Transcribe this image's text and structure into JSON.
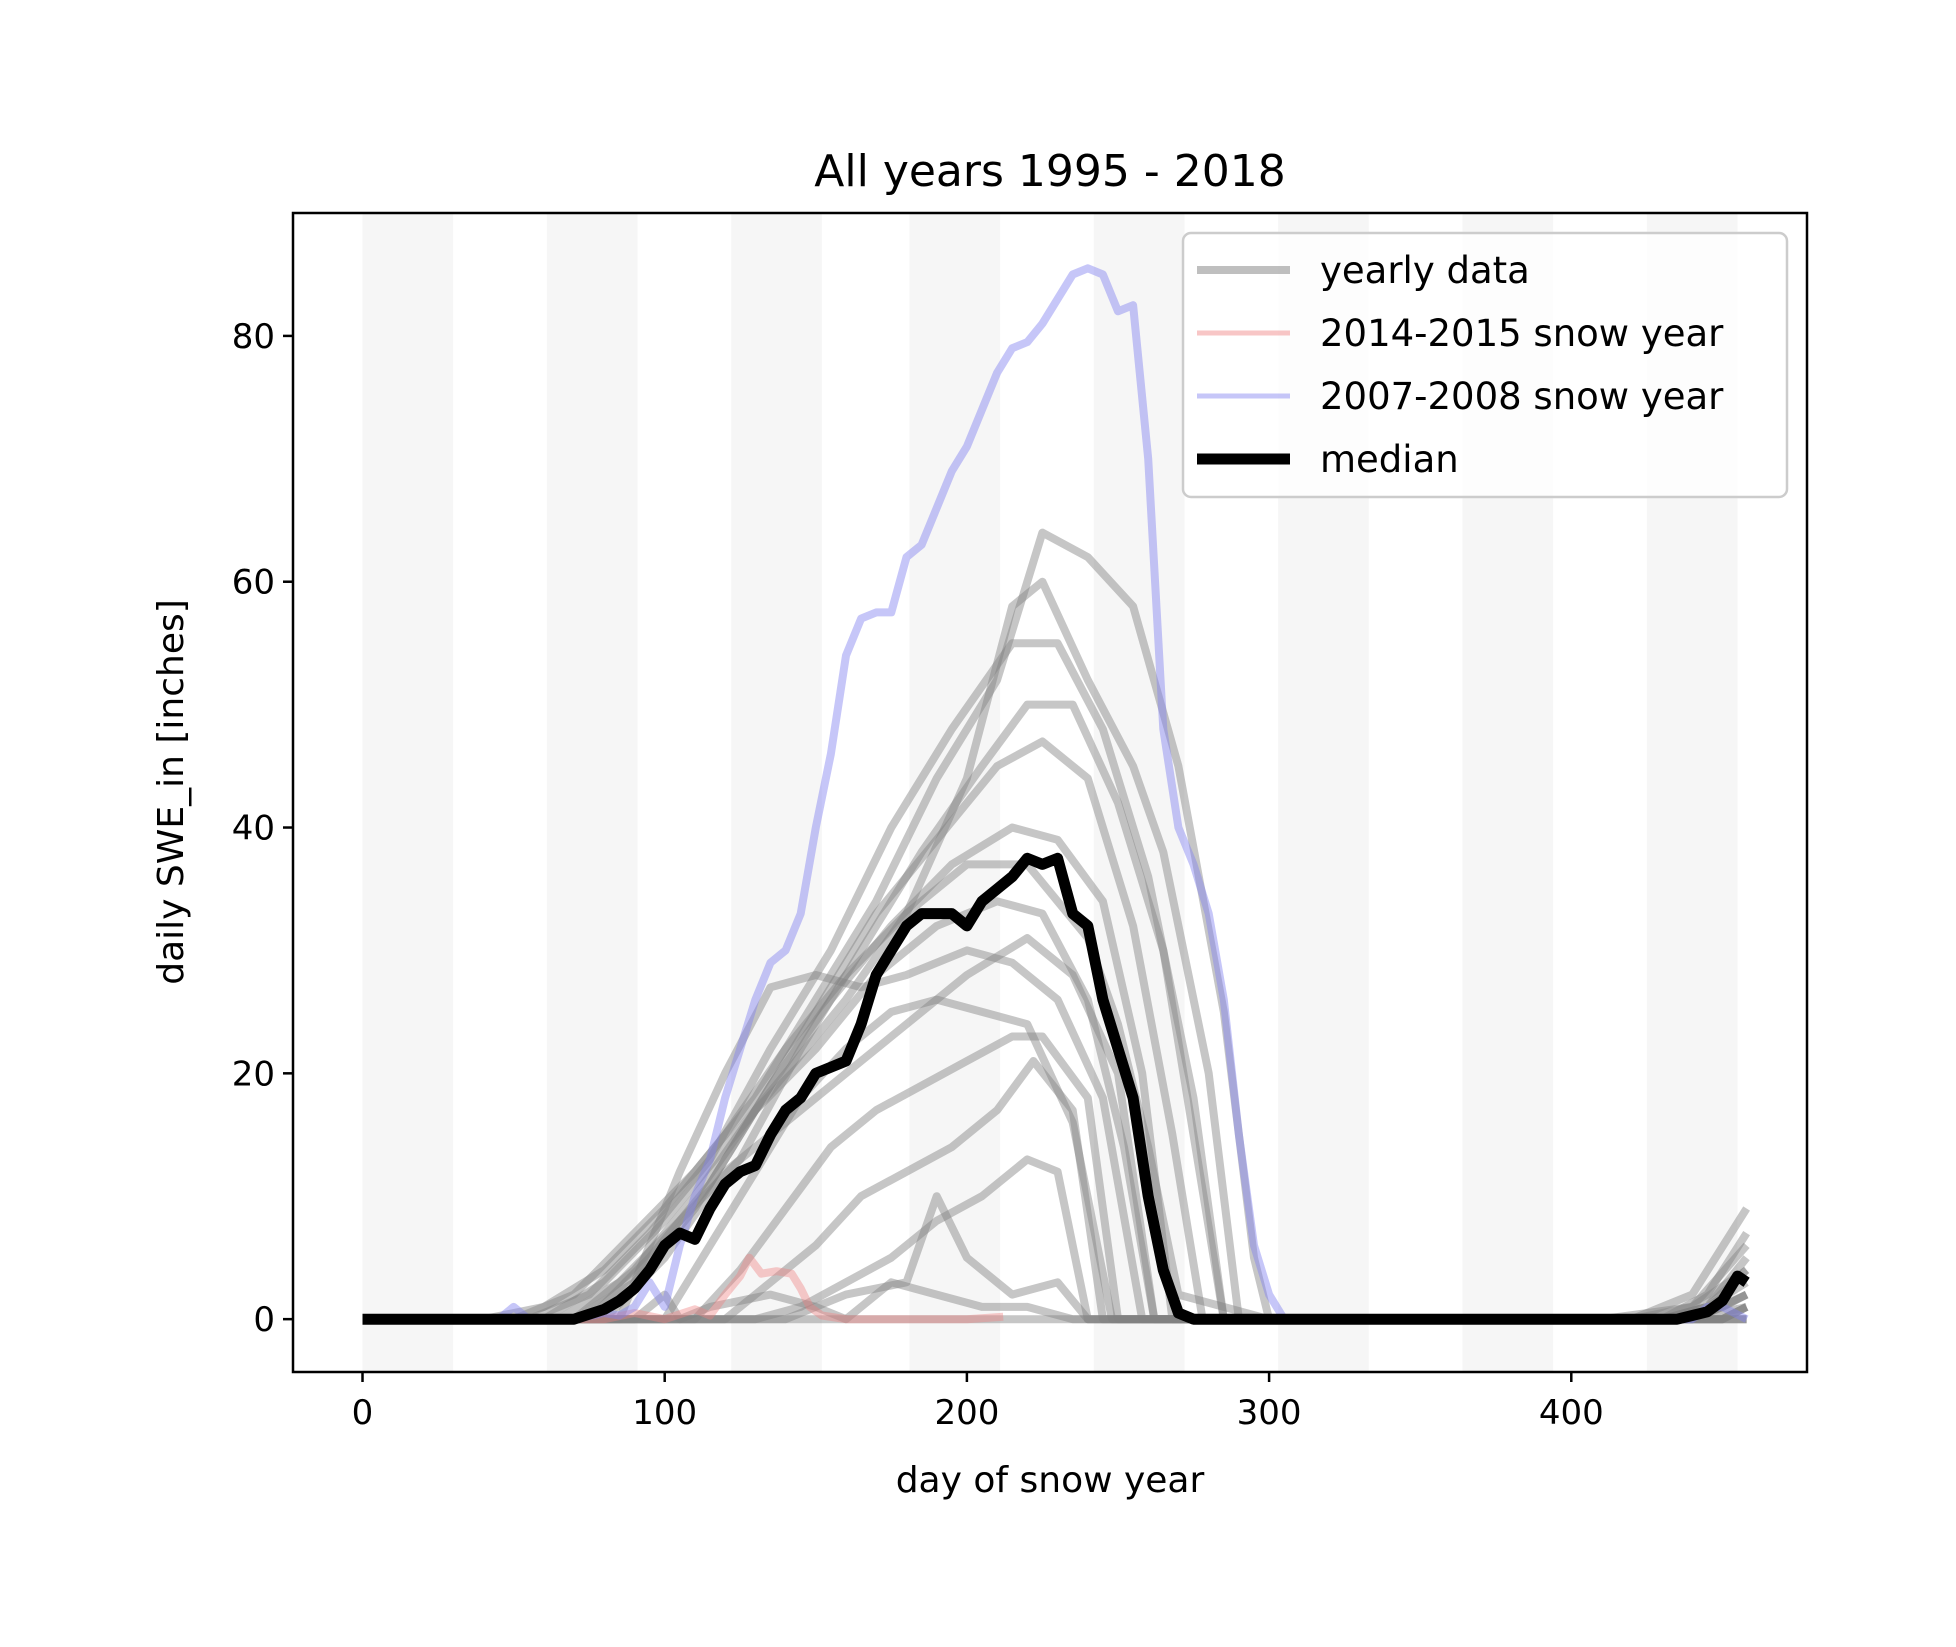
{
  "chart_data": {
    "type": "line",
    "title": "All years 1995 - 2018",
    "xlabel": "day of snow year",
    "ylabel": "daily SWE_in [inches]",
    "xlim": [
      -23,
      478
    ],
    "ylim": [
      -4.3,
      90
    ],
    "xticks": [
      0,
      100,
      200,
      300,
      400
    ],
    "yticks": [
      0,
      20,
      40,
      60,
      80
    ],
    "grid": false,
    "legend_position": "top-right",
    "month_bands": [
      [
        0,
        30
      ],
      [
        61,
        91
      ],
      [
        122,
        152
      ],
      [
        181,
        211
      ],
      [
        242,
        272
      ],
      [
        303,
        333
      ],
      [
        364,
        394
      ],
      [
        425,
        455
      ]
    ],
    "colors": {
      "yearly": "#808080",
      "highlight_2014_2015": "#f08080",
      "highlight_2007_2008": "#8080f0",
      "median": "#000000",
      "band": "#ebebeb"
    },
    "legend": [
      {
        "key": "yearly",
        "label": "yearly data"
      },
      {
        "key": "highlight_2014_2015",
        "label": "2014-2015 snow year"
      },
      {
        "key": "highlight_2007_2008",
        "label": "2007-2008 snow year"
      },
      {
        "key": "median",
        "label": "median"
      }
    ],
    "series": [
      {
        "name": "yearly data",
        "role": "yearly",
        "x": [
          0,
          40,
          60,
          80,
          100,
          120,
          140,
          160,
          180,
          200,
          220,
          240,
          250,
          260,
          270,
          300,
          410,
          440,
          458
        ],
        "y": [
          0,
          0,
          1,
          4,
          9,
          15,
          22,
          28,
          33,
          37,
          37,
          31,
          24,
          14,
          2,
          0,
          0,
          1,
          4
        ]
      },
      {
        "name": "yearly data",
        "role": "yearly",
        "x": [
          0,
          50,
          70,
          90,
          110,
          130,
          150,
          170,
          190,
          210,
          225,
          240,
          255,
          270,
          285,
          295,
          300,
          420,
          440,
          458
        ],
        "y": [
          0,
          0,
          2,
          7,
          12,
          18,
          26,
          34,
          44,
          52,
          64,
          62,
          58,
          45,
          25,
          5,
          0,
          0,
          2,
          9
        ]
      },
      {
        "name": "yearly data",
        "role": "yearly",
        "x": [
          0,
          60,
          80,
          100,
          120,
          140,
          160,
          180,
          200,
          215,
          225,
          240,
          255,
          265,
          280,
          290,
          420,
          440,
          458
        ],
        "y": [
          0,
          0,
          3,
          8,
          14,
          20,
          26,
          33,
          44,
          58,
          60,
          52,
          45,
          38,
          20,
          0,
          0,
          1,
          6
        ]
      },
      {
        "name": "yearly data",
        "role": "yearly",
        "x": [
          0,
          55,
          75,
          95,
          115,
          135,
          155,
          175,
          195,
          215,
          230,
          245,
          260,
          275,
          285,
          430,
          445,
          458
        ],
        "y": [
          0,
          0,
          2,
          7,
          13,
          22,
          30,
          40,
          48,
          55,
          55,
          48,
          36,
          18,
          0,
          0,
          2,
          7
        ]
      },
      {
        "name": "yearly data",
        "role": "yearly",
        "x": [
          0,
          65,
          85,
          105,
          125,
          145,
          165,
          185,
          205,
          220,
          235,
          250,
          265,
          275,
          285,
          430,
          445,
          458
        ],
        "y": [
          0,
          0,
          3,
          8,
          13,
          22,
          30,
          38,
          45,
          50,
          50,
          42,
          30,
          15,
          0,
          0,
          1,
          5
        ]
      },
      {
        "name": "yearly data",
        "role": "yearly",
        "x": [
          0,
          70,
          90,
          110,
          130,
          150,
          170,
          190,
          210,
          225,
          240,
          255,
          268,
          278,
          430,
          445,
          458
        ],
        "y": [
          0,
          0,
          4,
          10,
          17,
          25,
          33,
          39,
          45,
          47,
          44,
          32,
          15,
          0,
          0,
          1,
          4
        ]
      },
      {
        "name": "yearly data",
        "role": "yearly",
        "x": [
          0,
          75,
          95,
          115,
          135,
          155,
          175,
          195,
          215,
          230,
          245,
          258,
          268,
          430,
          445,
          458
        ],
        "y": [
          0,
          0,
          5,
          11,
          19,
          26,
          32,
          37,
          40,
          39,
          34,
          20,
          0,
          0,
          1,
          3
        ]
      },
      {
        "name": "yearly data",
        "role": "yearly",
        "x": [
          0,
          70,
          90,
          110,
          130,
          150,
          170,
          190,
          210,
          225,
          240,
          252,
          262,
          440,
          450,
          458
        ],
        "y": [
          0,
          0,
          3,
          9,
          17,
          22,
          28,
          32,
          34,
          33,
          26,
          14,
          0,
          0,
          1,
          2
        ]
      },
      {
        "name": "yearly data",
        "role": "yearly",
        "x": [
          0,
          85,
          105,
          120,
          135,
          150,
          165,
          180,
          200,
          215,
          230,
          245,
          258,
          440,
          450,
          458
        ],
        "y": [
          0,
          0,
          12,
          20,
          27,
          28,
          27,
          28,
          30,
          29,
          26,
          18,
          0,
          0,
          1,
          2
        ]
      },
      {
        "name": "yearly data",
        "role": "yearly",
        "x": [
          0,
          80,
          100,
          120,
          140,
          160,
          180,
          200,
          220,
          235,
          250,
          262,
          440,
          458
        ],
        "y": [
          0,
          0,
          5,
          12,
          16,
          20,
          24,
          28,
          31,
          28,
          20,
          0,
          0,
          2
        ]
      },
      {
        "name": "yearly data",
        "role": "yearly",
        "x": [
          0,
          100,
          115,
          130,
          145,
          160,
          175,
          190,
          205,
          220,
          235,
          248,
          440,
          458
        ],
        "y": [
          0,
          0,
          6,
          12,
          18,
          22,
          25,
          26,
          25,
          24,
          16,
          0,
          0,
          1
        ]
      },
      {
        "name": "yearly data",
        "role": "yearly",
        "x": [
          0,
          110,
          125,
          140,
          155,
          170,
          185,
          200,
          215,
          225,
          240,
          250,
          450,
          458
        ],
        "y": [
          0,
          0,
          4,
          9,
          14,
          17,
          19,
          21,
          23,
          23,
          18,
          0,
          0,
          1
        ]
      },
      {
        "name": "yearly data",
        "role": "yearly",
        "x": [
          0,
          120,
          135,
          150,
          165,
          180,
          195,
          210,
          222,
          235,
          245,
          450,
          458
        ],
        "y": [
          0,
          0,
          3,
          6,
          10,
          12,
          14,
          17,
          21,
          17,
          0,
          0,
          1
        ]
      },
      {
        "name": "yearly data",
        "role": "yearly",
        "x": [
          0,
          130,
          145,
          160,
          175,
          190,
          205,
          220,
          230,
          240,
          450,
          458
        ],
        "y": [
          0,
          0,
          1,
          3,
          5,
          8,
          10,
          13,
          12,
          0,
          0,
          1
        ]
      },
      {
        "name": "yearly data",
        "role": "yearly",
        "x": [
          0,
          140,
          160,
          180,
          190,
          200,
          215,
          230,
          240,
          458
        ],
        "y": [
          0,
          0,
          2,
          3,
          10,
          5,
          2,
          3,
          0,
          0
        ]
      },
      {
        "name": "yearly data",
        "role": "yearly",
        "x": [
          0,
          160,
          175,
          190,
          205,
          220,
          235,
          458
        ],
        "y": [
          0,
          0,
          3,
          2,
          1,
          1,
          0,
          0
        ]
      },
      {
        "name": "yearly data",
        "role": "yearly",
        "x": [
          0,
          90,
          100,
          105,
          115,
          135,
          150,
          160,
          170,
          458
        ],
        "y": [
          0,
          0,
          2,
          0,
          1,
          2,
          1,
          0,
          0,
          0
        ]
      },
      {
        "name": "2014-2015 snow year",
        "role": "highlight_2014_2015",
        "x": [
          0,
          80,
          90,
          100,
          110,
          115,
          120,
          125,
          128,
          132,
          137,
          142,
          145,
          148,
          152,
          160,
          180,
          200,
          212
        ],
        "y": [
          0,
          0,
          0.5,
          0,
          0.8,
          0.3,
          2,
          3.5,
          5,
          3.7,
          3.9,
          3.7,
          2.5,
          1,
          0.3,
          0,
          0,
          0,
          0.2
        ]
      },
      {
        "name": "2007-2008 snow year",
        "role": "highlight_2007_2008",
        "x": [
          0,
          45,
          50,
          55,
          70,
          80,
          85,
          90,
          95,
          100,
          105,
          110,
          115,
          120,
          125,
          130,
          135,
          140,
          145,
          150,
          155,
          160,
          165,
          170,
          175,
          180,
          185,
          190,
          195,
          200,
          205,
          210,
          215,
          220,
          225,
          230,
          235,
          240,
          245,
          250,
          255,
          260,
          265,
          270,
          275,
          280,
          285,
          290,
          295,
          300,
          305,
          440,
          445,
          450,
          458
        ],
        "y": [
          0,
          0,
          1,
          0,
          0,
          0.5,
          0.3,
          1,
          3,
          1,
          6,
          10,
          13,
          18,
          22,
          26,
          29,
          30,
          33,
          40,
          46,
          54,
          57,
          57.5,
          57.5,
          62,
          63,
          66,
          69,
          71,
          74,
          77,
          79,
          79.5,
          81,
          83,
          85,
          85.5,
          85,
          82,
          82.5,
          70,
          48,
          40,
          37,
          33,
          26,
          15,
          6,
          2,
          0,
          0,
          1,
          1,
          0
        ]
      },
      {
        "name": "median",
        "role": "median",
        "x": [
          0,
          70,
          75,
          80,
          85,
          90,
          95,
          100,
          105,
          110,
          115,
          120,
          125,
          130,
          135,
          140,
          145,
          150,
          155,
          160,
          165,
          170,
          175,
          180,
          185,
          190,
          195,
          200,
          205,
          210,
          215,
          220,
          225,
          230,
          235,
          240,
          245,
          250,
          255,
          260,
          265,
          270,
          275,
          300,
          400,
          435,
          440,
          445,
          450,
          455,
          458
        ],
        "y": [
          0,
          0,
          0.4,
          0.8,
          1.5,
          2.5,
          4,
          6,
          7,
          6.5,
          9,
          11,
          12,
          12.5,
          15,
          17,
          18,
          20,
          20.5,
          21,
          24,
          28,
          30,
          32,
          33,
          33,
          33,
          32,
          34,
          35,
          36,
          37.5,
          37,
          37.5,
          33,
          32,
          26,
          22,
          18,
          10,
          4,
          0.5,
          0,
          0,
          0,
          0,
          0.3,
          0.6,
          1.5,
          3.5,
          3
        ]
      }
    ]
  }
}
